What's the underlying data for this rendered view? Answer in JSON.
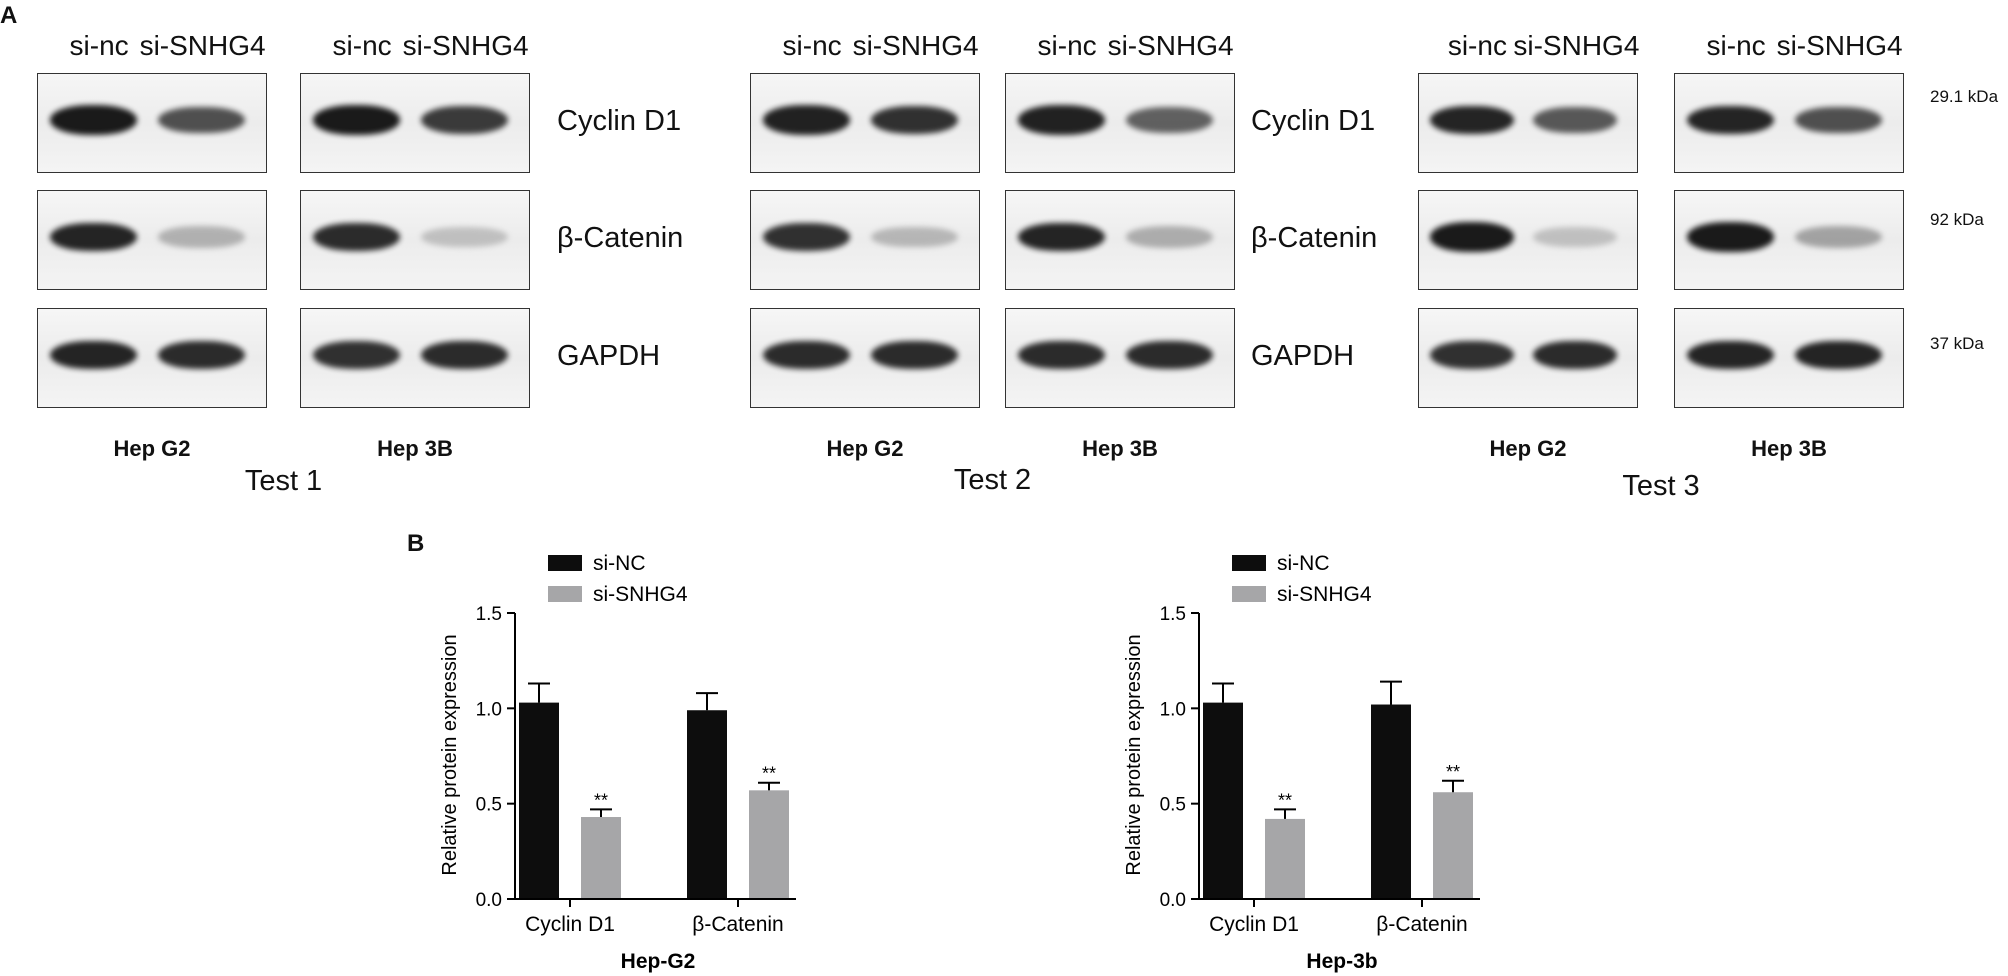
{
  "panel_a": {
    "letter": "A",
    "tests": [
      {
        "label": "Test 1",
        "groups": [
          {
            "cell": "Hep G2",
            "lanes": [
              "si-nc",
              "si-SNHG4"
            ],
            "bands": {
              "cyclin": [
                0.95,
                0.78
              ],
              "catenin": [
                0.92,
                0.38
              ],
              "gapdh": [
                0.92,
                0.9
              ]
            }
          },
          {
            "cell": "Hep 3B",
            "lanes": [
              "si-nc",
              "si-SNHG4"
            ],
            "bands": {
              "cyclin": [
                0.95,
                0.85
              ],
              "catenin": [
                0.9,
                0.3
              ],
              "gapdh": [
                0.88,
                0.9
              ]
            }
          }
        ],
        "proteins": [
          "Cyclin D1",
          "β-Catenin",
          "GAPDH"
        ]
      },
      {
        "label": "Test 2",
        "groups": [
          {
            "cell": "Hep G2",
            "lanes": [
              "si-nc",
              "si-SNHG4"
            ],
            "bands": {
              "cyclin": [
                0.93,
                0.88
              ],
              "catenin": [
                0.88,
                0.35
              ],
              "gapdh": [
                0.9,
                0.9
              ]
            }
          },
          {
            "cell": "Hep 3B",
            "lanes": [
              "si-nc",
              "si-SNHG4"
            ],
            "bands": {
              "cyclin": [
                0.93,
                0.72
              ],
              "catenin": [
                0.92,
                0.4
              ],
              "gapdh": [
                0.9,
                0.9
              ]
            }
          }
        ],
        "proteins": [
          "Cyclin D1",
          "β-Catenin",
          "GAPDH"
        ]
      },
      {
        "label": "Test 3",
        "groups": [
          {
            "cell": "Hep G2",
            "lanes": [
              "si-nc",
              "si-SNHG4"
            ],
            "bands": {
              "cyclin": [
                0.92,
                0.75
              ],
              "catenin": [
                0.95,
                0.3
              ],
              "gapdh": [
                0.88,
                0.9
              ]
            }
          },
          {
            "cell": "Hep 3B",
            "lanes": [
              "si-nc",
              "si-SNHG4"
            ],
            "bands": {
              "cyclin": [
                0.92,
                0.78
              ],
              "catenin": [
                0.95,
                0.45
              ],
              "gapdh": [
                0.92,
                0.92
              ]
            }
          }
        ],
        "kda": [
          "29.1 kDa",
          "92 kDa",
          "37 kDa"
        ]
      }
    ]
  },
  "panel_b_letter": "B",
  "colors": {
    "si_nc": "#0d0d0d",
    "si_snhg4": "#a6a6a8",
    "axis": "#000000"
  },
  "chart_data": [
    {
      "type": "bar",
      "title": "Hep-G2",
      "ylabel": "Relative protein expression",
      "xlabel": "",
      "ylim": [
        0,
        1.5
      ],
      "yticks": [
        "0.0",
        "0.5",
        "1.0",
        "1.5"
      ],
      "categories": [
        "Cyclin D1",
        "β-Catenin"
      ],
      "series": [
        {
          "name": "si-NC",
          "values": [
            1.03,
            0.99
          ],
          "errors": [
            0.1,
            0.09
          ],
          "marks": [
            "",
            ""
          ]
        },
        {
          "name": "si-SNHG4",
          "values": [
            0.43,
            0.57
          ],
          "errors": [
            0.04,
            0.04
          ],
          "marks": [
            "**",
            "**"
          ]
        }
      ],
      "legend": "top-left"
    },
    {
      "type": "bar",
      "title": "Hep-3b",
      "ylabel": "Relative protein expression",
      "xlabel": "",
      "ylim": [
        0,
        1.5
      ],
      "yticks": [
        "0.0",
        "0.5",
        "1.0",
        "1.5"
      ],
      "categories": [
        "Cyclin D1",
        "β-Catenin"
      ],
      "series": [
        {
          "name": "si-NC",
          "values": [
            1.03,
            1.02
          ],
          "errors": [
            0.1,
            0.12
          ],
          "marks": [
            "",
            ""
          ]
        },
        {
          "name": "si-SNHG4",
          "values": [
            0.42,
            0.56
          ],
          "errors": [
            0.05,
            0.06
          ],
          "marks": [
            "**",
            "**"
          ]
        }
      ],
      "legend": "top-left"
    }
  ]
}
